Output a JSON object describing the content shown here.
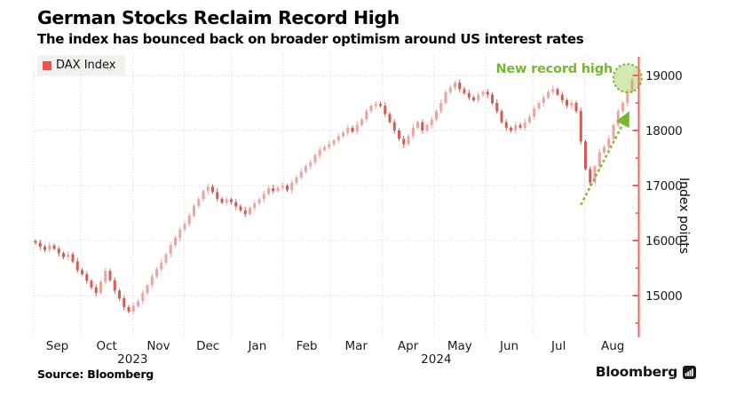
{
  "header": {
    "title": "German Stocks Reclaim Record High",
    "subtitle": "The index has bounced back on broader optimism around US interest rates"
  },
  "legend": {
    "label": "DAX Index",
    "swatch_color": "#ef5350"
  },
  "annotation": {
    "text": "New record high",
    "color": "#76b82e"
  },
  "footer": {
    "source": "Source: Bloomberg",
    "brand": "Bloomberg"
  },
  "chart_data": {
    "type": "candlestick",
    "series_name": "DAX Index",
    "ylabel": "Index points",
    "ylim": [
      14270,
      19370
    ],
    "y_ticks": [
      19000,
      18000,
      17000,
      16000,
      15000
    ],
    "y_minor_ticks": [
      18500,
      17500,
      16500,
      15500,
      14500
    ],
    "grid": true,
    "x_months": [
      "Sep",
      "Oct",
      "Nov",
      "Dec",
      "Jan",
      "Feb",
      "Mar",
      "Apr",
      "May",
      "Jun",
      "Jul",
      "Aug"
    ],
    "x_years": [
      {
        "label": "2023",
        "span_months": [
          0,
          4
        ]
      },
      {
        "label": "2024",
        "span_months": [
          4,
          12
        ]
      }
    ],
    "month_start_indices": [
      0,
      10,
      21,
      32,
      42,
      53,
      63,
      74,
      85,
      96,
      106,
      117
    ],
    "total_bars": 129,
    "closes": [
      15960,
      15890,
      15830,
      15910,
      15850,
      15770,
      15700,
      15750,
      15620,
      15460,
      15390,
      15270,
      15150,
      15050,
      15250,
      15450,
      15280,
      15090,
      14950,
      14790,
      14710,
      14810,
      14900,
      15050,
      15190,
      15350,
      15480,
      15600,
      15750,
      15920,
      16050,
      16200,
      16300,
      16450,
      16630,
      16750,
      16900,
      16980,
      16880,
      16760,
      16690,
      16750,
      16700,
      16620,
      16550,
      16480,
      16590,
      16680,
      16750,
      16850,
      16950,
      16900,
      16960,
      17000,
      16920,
      17050,
      17150,
      17250,
      17350,
      17420,
      17550,
      17650,
      17700,
      17750,
      17820,
      17900,
      17960,
      18050,
      17980,
      18100,
      18200,
      18350,
      18450,
      18480,
      18450,
      18300,
      18150,
      18000,
      17850,
      17750,
      17900,
      18050,
      18150,
      18000,
      18100,
      18200,
      18350,
      18500,
      18700,
      18780,
      18870,
      18750,
      18680,
      18600,
      18550,
      18650,
      18700,
      18650,
      18500,
      18350,
      18150,
      18050,
      18000,
      18100,
      18050,
      18150,
      18250,
      18400,
      18500,
      18600,
      18700,
      18750,
      18650,
      18550,
      18450,
      18500,
      18350,
      17800,
      17300,
      17050,
      17350,
      17600,
      17700,
      17850,
      18100,
      18350,
      18500,
      18700,
      18920
    ],
    "first_open": 15990,
    "wick_pattern": [
      30,
      55,
      40,
      65,
      35,
      50
    ],
    "key_points": {
      "record_high": 18970,
      "aug_low": 17050,
      "oct_2023_low": 14710
    },
    "record_circle": {
      "index": 127,
      "value": 18950,
      "radius_px": 16
    },
    "arrow": {
      "from_index": 117,
      "from_value": 16650,
      "to_index": 127,
      "to_value": 18280
    },
    "colors": {
      "up": "#efa3a0",
      "down": "#da5850",
      "axis": "#f4605c",
      "grid": "#d6d6d6",
      "tick_label": "#1b1b1b",
      "annotation_green": "#76b82e",
      "circle_fill": "rgba(141,198,63,0.38)"
    }
  }
}
